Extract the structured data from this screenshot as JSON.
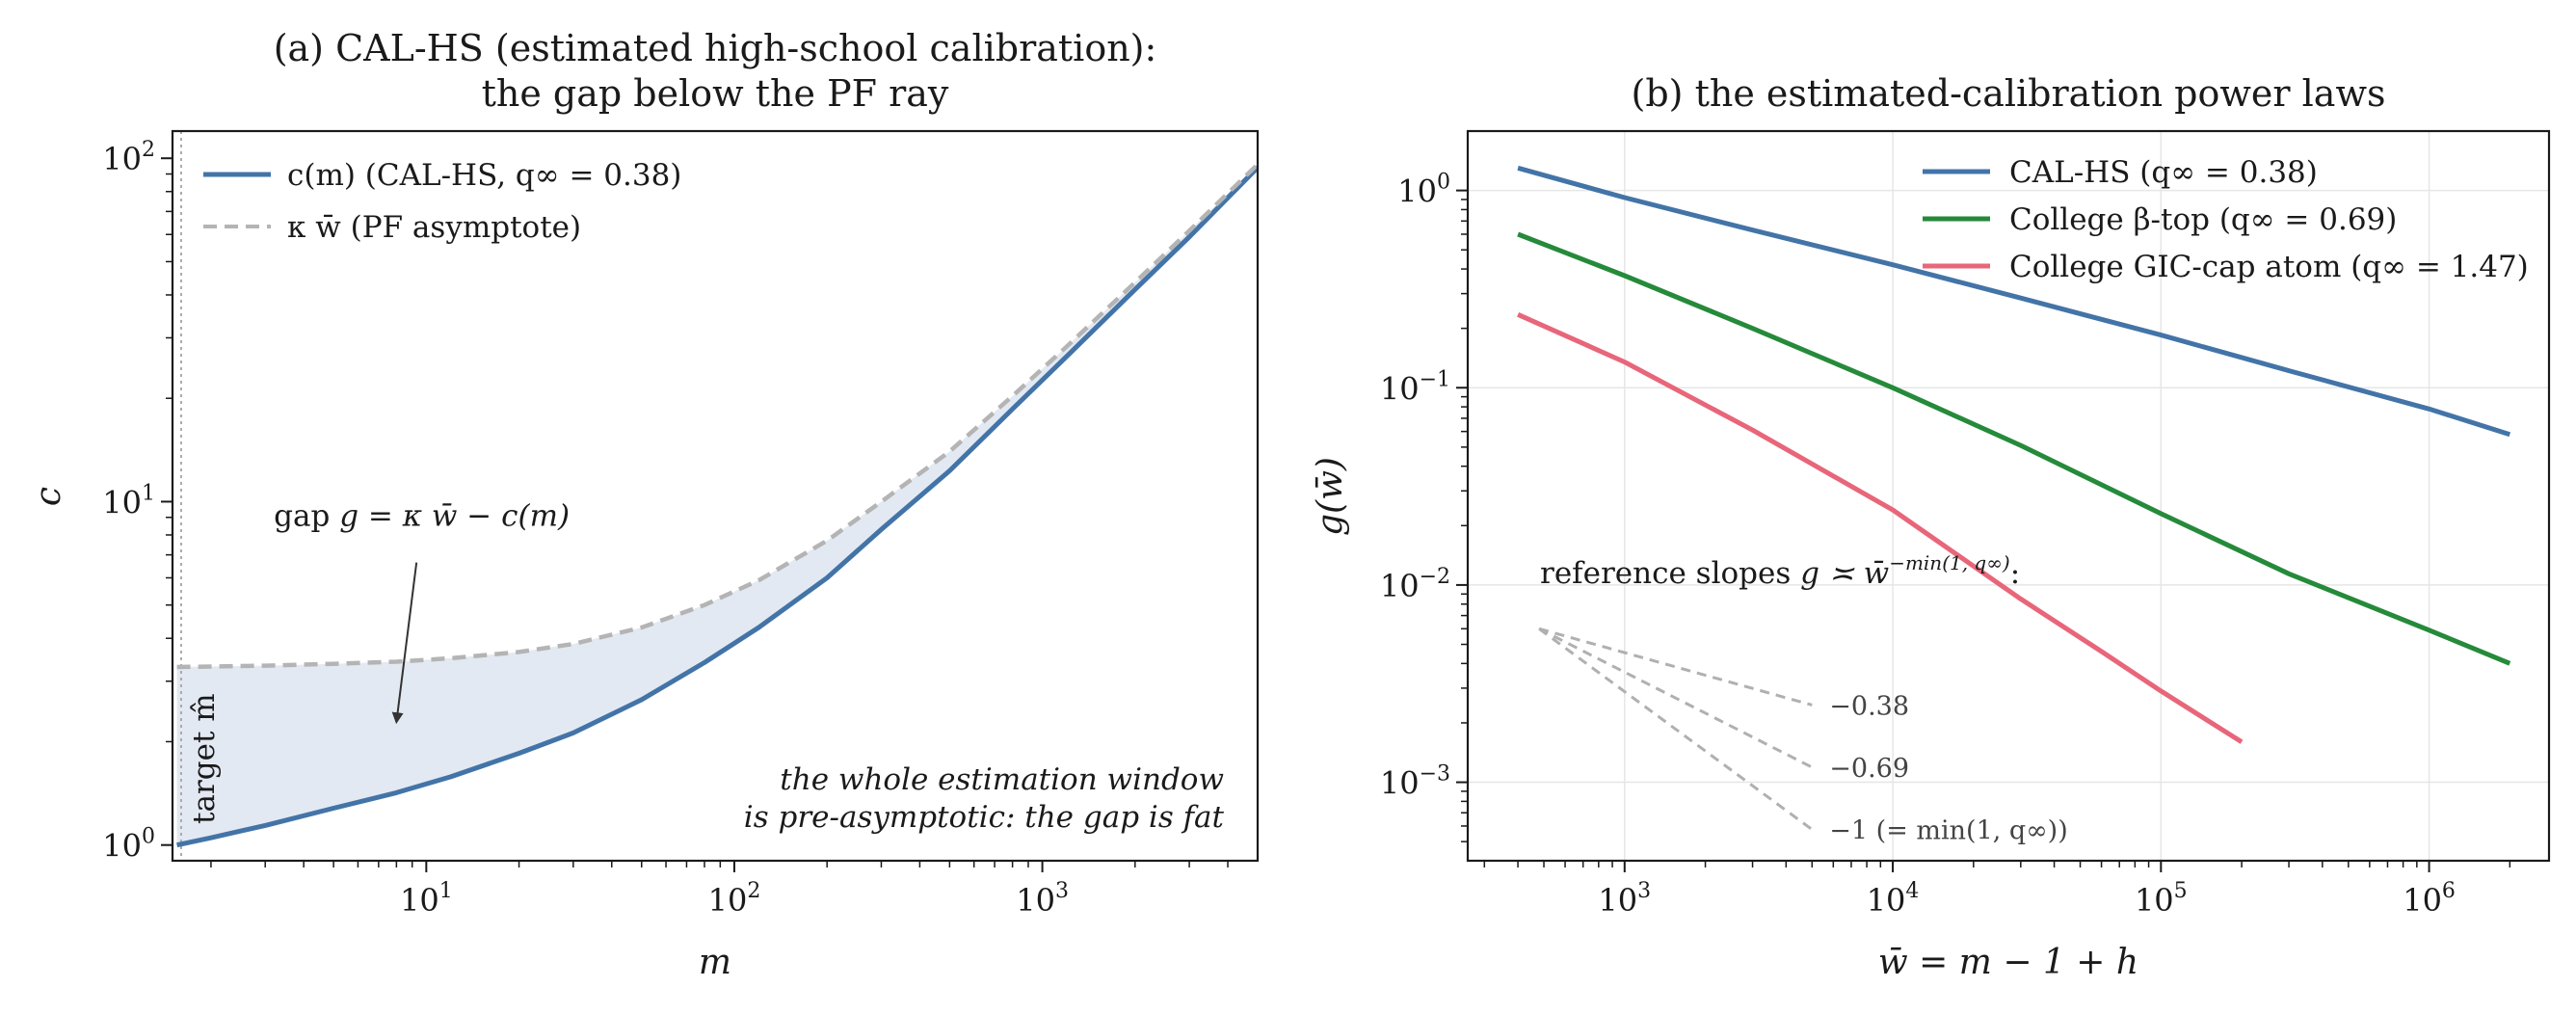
{
  "chart_data": [
    {
      "type": "line",
      "title_line1": "(a)  CAL-HS (estimated high-school calibration):",
      "title_line2": "the gap below the PF ray",
      "xlabel": "m",
      "ylabel": "c",
      "xscale": "log",
      "yscale": "log",
      "xlim": [
        1.5,
        5000
      ],
      "ylim": [
        0.9,
        120
      ],
      "xticks": [
        {
          "value": 10,
          "base": "10",
          "exp": "1"
        },
        {
          "value": 100,
          "base": "10",
          "exp": "2"
        },
        {
          "value": 1000,
          "base": "10",
          "exp": "3"
        }
      ],
      "yticks": [
        {
          "value": 1,
          "base": "10",
          "exp": "0"
        },
        {
          "value": 10,
          "base": "10",
          "exp": "1"
        },
        {
          "value": 100,
          "base": "10",
          "exp": "2"
        }
      ],
      "legend_position": "top-left",
      "series": [
        {
          "name": "c(m)  (CAL-HS, q∞ = 0.38)",
          "color": "#4374a8",
          "style": "solid",
          "x": [
            1.55,
            2,
            3,
            5,
            8,
            12,
            20,
            30,
            50,
            80,
            120,
            200,
            300,
            500,
            800,
            1200,
            2000,
            3000,
            5000
          ],
          "y": [
            1.0,
            1.05,
            1.14,
            1.28,
            1.42,
            1.58,
            1.85,
            2.12,
            2.65,
            3.4,
            4.3,
            6.0,
            8.3,
            12.3,
            18.6,
            26.5,
            41.5,
            59.0,
            94.0
          ]
        },
        {
          "name": "κ w̄  (PF asymptote)",
          "color": "#b4b4b4",
          "style": "dashed",
          "x": [
            1.55,
            2,
            3,
            5,
            8,
            12,
            20,
            30,
            50,
            80,
            120,
            200,
            300,
            500,
            800,
            1200,
            2000,
            3000,
            5000
          ],
          "y": [
            3.3,
            3.31,
            3.33,
            3.37,
            3.42,
            3.5,
            3.65,
            3.85,
            4.3,
            5.0,
            5.9,
            7.7,
            10.0,
            14.0,
            20.3,
            28.3,
            43.5,
            61.5,
            96.0
          ]
        }
      ],
      "vline": {
        "x": 1.6,
        "label": "target m̂"
      },
      "gap_annotation": {
        "label": "gap",
        "formula": "g = κ w̄ − c(m)",
        "text_at": [
          3.2,
          8.5
        ],
        "arrow_to": [
          8.0,
          2.28
        ]
      },
      "note_line1": "the whole estimation window",
      "note_line2": "is pre-asymptotic: the gap is fat"
    },
    {
      "type": "line",
      "title": "(b)  the estimated-calibration power laws",
      "xlabel": "w̄ = m − 1 + h",
      "ylabel": "g(w̄)",
      "xscale": "log",
      "yscale": "log",
      "xlim": [
        260,
        2800000
      ],
      "ylim": [
        0.0004,
        2.0
      ],
      "xticks": [
        {
          "value": 1000,
          "base": "10",
          "exp": "3"
        },
        {
          "value": 10000,
          "base": "10",
          "exp": "4"
        },
        {
          "value": 100000,
          "base": "10",
          "exp": "5"
        },
        {
          "value": 1000000,
          "base": "10",
          "exp": "6"
        }
      ],
      "yticks": [
        {
          "value": 0.001,
          "base": "10",
          "exp": "−3"
        },
        {
          "value": 0.01,
          "base": "10",
          "exp": "−2"
        },
        {
          "value": 0.1,
          "base": "10",
          "exp": "−1"
        },
        {
          "value": 1,
          "base": "10",
          "exp": "0"
        }
      ],
      "legend_position": "top-right",
      "series": [
        {
          "name": "CAL-HS  (q∞ = 0.38)",
          "color": "#4374a8",
          "x": [
            400,
            1000,
            3000,
            10000,
            30000,
            100000,
            300000,
            1000000,
            2000000
          ],
          "y": [
            1.3,
            0.92,
            0.63,
            0.42,
            0.285,
            0.185,
            0.122,
            0.078,
            0.058
          ]
        },
        {
          "name": "College β-top  (q∞ = 0.69)",
          "color": "#258a3a",
          "x": [
            400,
            1000,
            3000,
            10000,
            30000,
            100000,
            300000,
            1000000,
            2000000
          ],
          "y": [
            0.6,
            0.37,
            0.2,
            0.1,
            0.051,
            0.023,
            0.0114,
            0.0059,
            0.004
          ]
        },
        {
          "name": "College GIC-cap atom  (q∞ = 1.47)",
          "color": "#e8667a",
          "x": [
            400,
            1000,
            3000,
            10000,
            30000,
            60000,
            100000,
            200000
          ],
          "y": [
            0.235,
            0.135,
            0.061,
            0.024,
            0.0085,
            0.0046,
            0.0029,
            0.0016
          ]
        }
      ],
      "reference_title": "reference slopes",
      "reference_formula_base": "g ≍ w̄",
      "reference_formula_exp": "−min(1, q∞)",
      "reference_origin": [
        480,
        0.006
      ],
      "reference_end_x": 5000,
      "reference_slopes": [
        {
          "slope": -0.38,
          "label": "−0.38"
        },
        {
          "slope": -0.69,
          "label": "−0.69"
        },
        {
          "slope": -1.0,
          "label": "−1 (= min(1, q∞))"
        }
      ]
    }
  ]
}
